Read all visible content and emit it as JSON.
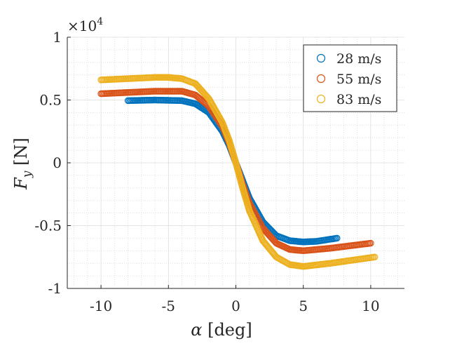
{
  "chart_data": {
    "type": "scatter",
    "title": "",
    "xlabel": "α [deg]",
    "ylabel": "F_y [N]",
    "ylabel_parts": {
      "main": "F",
      "sub": "y",
      "unit": " [N]"
    },
    "xlabel_parts": {
      "main": "α",
      "unit": " [deg]"
    },
    "xlim": [
      -12.5,
      12.5
    ],
    "ylim": [
      -10000,
      10000
    ],
    "y_exponent_label": {
      "base": "×10",
      "exp": "4"
    },
    "x_ticks": [
      -10,
      -5,
      0,
      5,
      10
    ],
    "x_tick_labels": [
      "-10",
      "-5",
      "0",
      "5",
      "10"
    ],
    "y_ticks": [
      -10000,
      -5000,
      0,
      5000,
      10000
    ],
    "y_tick_labels": [
      "-1",
      "-0.5",
      "0",
      "0.5",
      "1"
    ],
    "grid": "on-minor-dotted",
    "legend_position": "top-right",
    "marker": "open-circle",
    "series": [
      {
        "name": "28 m/s",
        "color": "#0072BD",
        "x": [
          -8.0,
          -6.0,
          -4.0,
          -3.0,
          -2.0,
          -1.0,
          -0.5,
          0.0,
          0.5,
          1.0,
          2.0,
          3.0,
          4.0,
          5.0,
          6.0,
          7.5
        ],
        "y": [
          4950,
          5000,
          4950,
          4700,
          4000,
          2500,
          1400,
          0,
          -1400,
          -2800,
          -4700,
          -5800,
          -6200,
          -6300,
          -6250,
          -6000
        ]
      },
      {
        "name": "55 m/s",
        "color": "#D95319",
        "x": [
          -10.0,
          -8.0,
          -6.0,
          -4.0,
          -3.0,
          -2.0,
          -1.0,
          -0.5,
          0.0,
          0.5,
          1.0,
          2.0,
          3.0,
          4.0,
          5.0,
          7.0,
          10.0
        ],
        "y": [
          5500,
          5600,
          5700,
          5700,
          5400,
          4500,
          2900,
          1600,
          0,
          -1700,
          -3200,
          -5200,
          -6400,
          -6900,
          -7000,
          -6800,
          -6400
        ]
      },
      {
        "name": "83 m/s",
        "color": "#EDB120",
        "x": [
          -10.0,
          -8.0,
          -6.0,
          -5.0,
          -4.0,
          -3.0,
          -2.0,
          -1.0,
          -0.5,
          0.0,
          0.5,
          1.0,
          2.0,
          3.0,
          4.0,
          5.0,
          7.0,
          10.3
        ],
        "y": [
          6600,
          6700,
          6800,
          6800,
          6700,
          6300,
          5100,
          3200,
          1800,
          0,
          -2000,
          -3800,
          -6200,
          -7500,
          -8100,
          -8250,
          -8000,
          -7500
        ]
      }
    ]
  }
}
